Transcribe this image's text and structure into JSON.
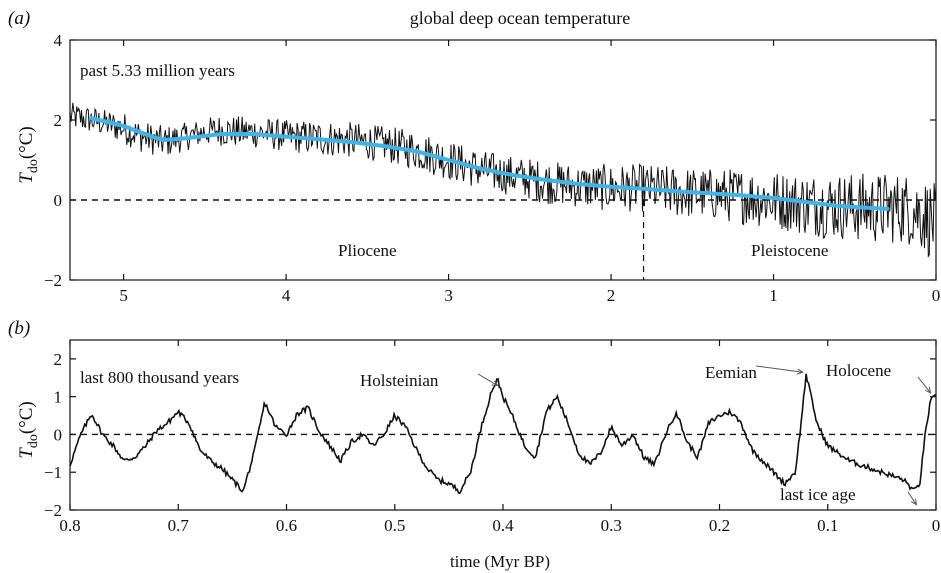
{
  "chart_data": [
    {
      "panel": "(a)",
      "type": "line",
      "title": "global deep ocean temperature",
      "annotation": "past 5.33 million years",
      "ylabel": {
        "symbol": "T",
        "subscript": "do",
        "unit": "(°C)"
      },
      "xlabel": "",
      "xlim": [
        5.33,
        0
      ],
      "ylim": [
        -2,
        4
      ],
      "xticks": [
        5,
        4,
        3,
        2,
        1,
        0
      ],
      "yticks": [
        -2,
        0,
        2,
        4
      ],
      "reference_line_y": 0,
      "epoch_boundary_x": 1.8,
      "epoch_labels": [
        {
          "text": "Pliocene",
          "x": 3.5,
          "y": -1.4
        },
        {
          "text": "Pleistocene",
          "x": 0.9,
          "y": -1.4
        }
      ],
      "series": [
        {
          "style": "black-noisy",
          "x": [
            5.33,
            5.2,
            5.1,
            5.0,
            4.9,
            4.8,
            4.75,
            4.6,
            4.5,
            4.4,
            4.3,
            4.2,
            4.0,
            3.8,
            3.6,
            3.4,
            3.2,
            3.0,
            2.8,
            2.6,
            2.4,
            2.2,
            2.0,
            1.8,
            1.6,
            1.4,
            1.2,
            1.0,
            0.9,
            0.8,
            0.6,
            0.4,
            0.3,
            0.2,
            0.1,
            0.0
          ],
          "y": [
            2.1,
            2.0,
            1.9,
            1.8,
            1.6,
            1.5,
            1.45,
            1.6,
            1.7,
            1.75,
            1.7,
            1.7,
            1.6,
            1.55,
            1.5,
            1.4,
            1.25,
            1.0,
            0.75,
            0.6,
            0.45,
            0.35,
            0.3,
            0.3,
            0.2,
            0.15,
            0.1,
            0.0,
            -0.05,
            -0.1,
            -0.15,
            -0.2,
            -0.2,
            -0.2,
            -0.3,
            -0.6
          ],
          "amplitude": [
            0.35,
            0.35,
            0.35,
            0.4,
            0.4,
            0.4,
            0.4,
            0.35,
            0.35,
            0.4,
            0.4,
            0.4,
            0.4,
            0.45,
            0.45,
            0.45,
            0.5,
            0.5,
            0.5,
            0.5,
            0.55,
            0.55,
            0.6,
            0.6,
            0.65,
            0.65,
            0.7,
            0.75,
            0.75,
            0.8,
            0.85,
            0.9,
            0.9,
            0.9,
            0.95,
            1.0
          ]
        },
        {
          "style": "cyan-smooth",
          "color": "#3eb4e8",
          "x": [
            5.2,
            5.0,
            4.8,
            4.75,
            4.6,
            4.4,
            4.2,
            4.0,
            3.8,
            3.6,
            3.4,
            3.2,
            3.0,
            2.8,
            2.6,
            2.4,
            2.2,
            2.0,
            1.8,
            1.6,
            1.4,
            1.2,
            1.0,
            0.8,
            0.6,
            0.4,
            0.3
          ],
          "y": [
            2.05,
            1.85,
            1.55,
            1.5,
            1.55,
            1.65,
            1.65,
            1.58,
            1.52,
            1.45,
            1.35,
            1.22,
            1.0,
            0.78,
            0.62,
            0.5,
            0.4,
            0.33,
            0.28,
            0.22,
            0.17,
            0.12,
            0.05,
            -0.05,
            -0.15,
            -0.2,
            -0.22
          ]
        }
      ]
    },
    {
      "panel": "(b)",
      "type": "line",
      "annotation": "last 800 thousand years",
      "ylabel": {
        "symbol": "T",
        "subscript": "do",
        "unit": "(°C)"
      },
      "xlabel": "time (Myr BP)",
      "xlim": [
        0.8,
        0
      ],
      "ylim": [
        -2,
        2.5
      ],
      "xticks": [
        0.8,
        0.7,
        0.6,
        0.5,
        0.4,
        0.3,
        0.2,
        0.1,
        0
      ],
      "xtick_labels": [
        "0.8",
        "0.7",
        "0.6",
        "0.5",
        "0.4",
        "0.3",
        "0.2",
        "0.1",
        "0"
      ],
      "yticks": [
        -2,
        -1,
        0,
        1,
        2
      ],
      "reference_line_y": 0,
      "annotations": [
        {
          "text": "Holsteinian",
          "x": 0.405,
          "y": 1.4
        },
        {
          "text": "Eemian",
          "x": 0.125,
          "y": 1.7
        },
        {
          "text": "Holocene",
          "x": 0.005,
          "y": 1.1
        },
        {
          "text": "last ice age",
          "x": 0.02,
          "y": -1.7
        }
      ],
      "series": [
        {
          "style": "black",
          "x": [
            0.8,
            0.79,
            0.78,
            0.77,
            0.76,
            0.75,
            0.74,
            0.73,
            0.72,
            0.71,
            0.7,
            0.69,
            0.68,
            0.67,
            0.66,
            0.65,
            0.64,
            0.63,
            0.62,
            0.61,
            0.6,
            0.59,
            0.58,
            0.57,
            0.56,
            0.55,
            0.54,
            0.53,
            0.52,
            0.51,
            0.5,
            0.49,
            0.48,
            0.47,
            0.46,
            0.45,
            0.44,
            0.43,
            0.42,
            0.41,
            0.405,
            0.4,
            0.39,
            0.38,
            0.37,
            0.36,
            0.35,
            0.34,
            0.33,
            0.32,
            0.31,
            0.3,
            0.29,
            0.28,
            0.27,
            0.26,
            0.25,
            0.24,
            0.23,
            0.22,
            0.21,
            0.2,
            0.19,
            0.18,
            0.17,
            0.16,
            0.15,
            0.14,
            0.13,
            0.125,
            0.12,
            0.11,
            0.1,
            0.09,
            0.08,
            0.07,
            0.06,
            0.05,
            0.04,
            0.03,
            0.02,
            0.015,
            0.01,
            0.005,
            0.0
          ],
          "y": [
            -0.8,
            0.0,
            0.55,
            0.0,
            -0.3,
            -0.7,
            -0.6,
            -0.3,
            0.1,
            0.3,
            0.6,
            0.3,
            -0.4,
            -0.7,
            -0.9,
            -1.2,
            -1.5,
            -0.5,
            0.85,
            0.2,
            0.0,
            0.55,
            0.7,
            0.1,
            -0.3,
            -0.7,
            -0.2,
            0.0,
            -0.3,
            0.0,
            0.5,
            0.2,
            -0.4,
            -0.9,
            -1.2,
            -1.3,
            -1.5,
            -1.0,
            0.2,
            1.2,
            1.45,
            1.0,
            0.4,
            -0.3,
            -0.6,
            0.6,
            1.0,
            0.3,
            -0.5,
            -0.8,
            -0.5,
            0.2,
            -0.3,
            0.0,
            -0.6,
            -0.8,
            0.0,
            0.6,
            -0.2,
            -0.6,
            0.3,
            0.5,
            0.6,
            0.3,
            -0.4,
            -0.7,
            -1.0,
            -1.3,
            -1.0,
            0.2,
            1.6,
            0.3,
            -0.3,
            -0.5,
            -0.7,
            -0.8,
            -0.9,
            -1.0,
            -1.1,
            -1.2,
            -1.5,
            -1.3,
            0.0,
            0.9,
            1.0
          ]
        }
      ]
    }
  ]
}
